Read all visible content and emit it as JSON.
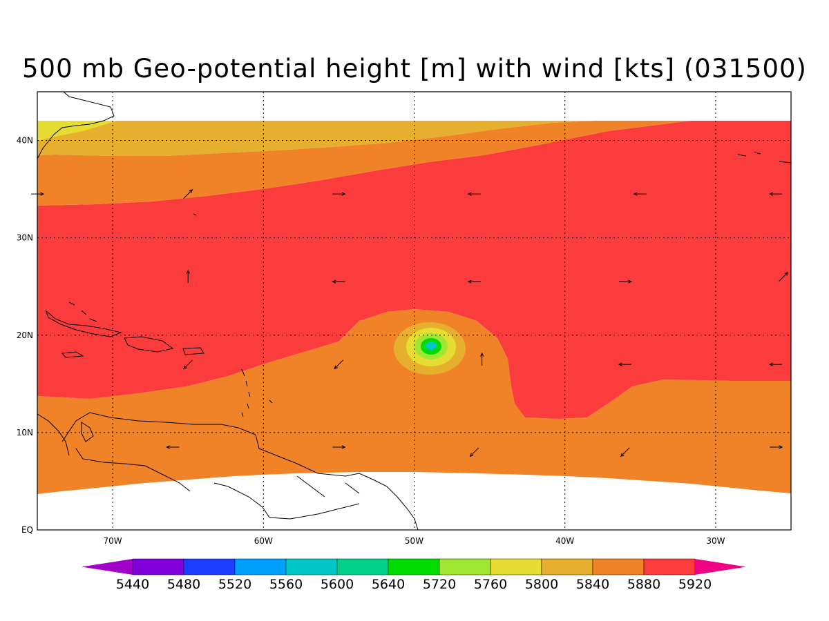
{
  "title": "500 mb Geo-potential height [m] with wind [kts] (031500)",
  "axes": {
    "x_ticks": [
      {
        "label": "70W",
        "lon": -70
      },
      {
        "label": "60W",
        "lon": -60
      },
      {
        "label": "50W",
        "lon": -50
      },
      {
        "label": "40W",
        "lon": -40
      },
      {
        "label": "30W",
        "lon": -30
      }
    ],
    "y_ticks": [
      {
        "label": "40N",
        "lat": 40
      },
      {
        "label": "30N",
        "lat": 30
      },
      {
        "label": "20N",
        "lat": 20
      },
      {
        "label": "10N",
        "lat": 10
      },
      {
        "label": "EQ",
        "lat": 0
      }
    ],
    "lon_range": [
      -75,
      -25
    ],
    "lat_range": [
      0,
      45
    ]
  },
  "colorbar": {
    "labels": [
      "5440",
      "5480",
      "5520",
      "5560",
      "5600",
      "5640",
      "5720",
      "5760",
      "5800",
      "5840",
      "5880",
      "5920"
    ],
    "colors": [
      "#a000c8",
      "#8200dc",
      "#1e3cff",
      "#00a0ff",
      "#00c8c8",
      "#00d28c",
      "#00dc00",
      "#a0e632",
      "#e6dc32",
      "#e6af2d",
      "#f08228",
      "#fa3c3c",
      "#f00082"
    ]
  },
  "fill_colors": {
    "c5800": "#e6dc32",
    "c5840": "#e6af2d",
    "c5880": "#f08228",
    "c5920": "#fa3c3c",
    "c5760": "#a0e632",
    "c5720": "#00dc00",
    "c5640": "#00c8c8",
    "c5600": "#00a0ff"
  },
  "wind_vectors": [
    {
      "lon": -75,
      "lat": 34.5,
      "dir": "E"
    },
    {
      "lon": -65,
      "lat": 34.5,
      "dir": "NE"
    },
    {
      "lon": -55,
      "lat": 34.5,
      "dir": "E"
    },
    {
      "lon": -46,
      "lat": 34.5,
      "dir": "W"
    },
    {
      "lon": -35,
      "lat": 34.5,
      "dir": "W"
    },
    {
      "lon": -26,
      "lat": 34.5,
      "dir": "W"
    },
    {
      "lon": -65,
      "lat": 26,
      "dir": "N"
    },
    {
      "lon": -55,
      "lat": 25.5,
      "dir": "W"
    },
    {
      "lon": -46,
      "lat": 25.5,
      "dir": "W"
    },
    {
      "lon": -36,
      "lat": 25.5,
      "dir": "E"
    },
    {
      "lon": -25.5,
      "lat": 26,
      "dir": "NE"
    },
    {
      "lon": -65,
      "lat": 17,
      "dir": "SW"
    },
    {
      "lon": -55,
      "lat": 17,
      "dir": "SW"
    },
    {
      "lon": -45.5,
      "lat": 17.5,
      "dir": "N"
    },
    {
      "lon": -36,
      "lat": 17,
      "dir": "W"
    },
    {
      "lon": -26,
      "lat": 17,
      "dir": "W"
    },
    {
      "lon": -66,
      "lat": 8.5,
      "dir": "W"
    },
    {
      "lon": -55,
      "lat": 8.5,
      "dir": "E"
    },
    {
      "lon": -46,
      "lat": 8,
      "dir": "SW"
    },
    {
      "lon": -36,
      "lat": 8,
      "dir": "SW"
    },
    {
      "lon": -26,
      "lat": 8.5,
      "dir": "E"
    }
  ]
}
